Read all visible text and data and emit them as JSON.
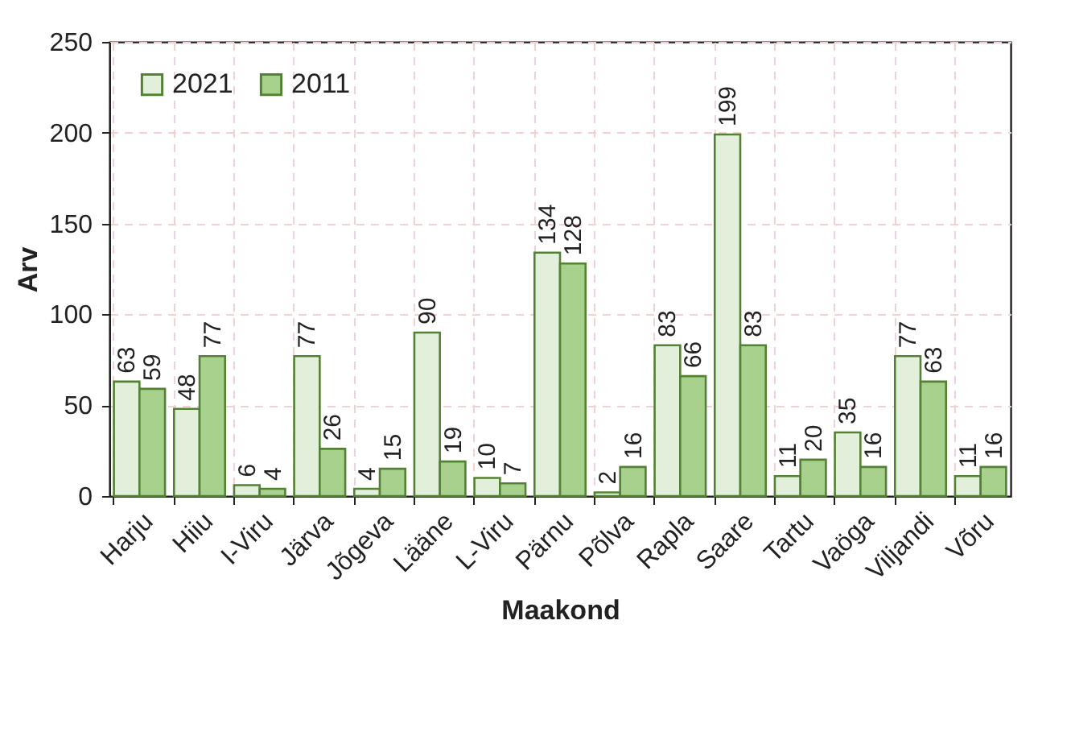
{
  "chart_data": {
    "type": "bar",
    "xlabel": "Maakond",
    "ylabel": "Arv",
    "categories": [
      "Harju",
      "Hiiu",
      "I-Viru",
      "Järva",
      "Jõgeva",
      "Lääne",
      "L-Viru",
      "Pärnu",
      "Põlva",
      "Rapla",
      "Saare",
      "Tartu",
      "Vaöga",
      "Viljandi",
      "Võru"
    ],
    "series": [
      {
        "name": "2021",
        "color": "#e2efda",
        "values": [
          63,
          48,
          6,
          77,
          4,
          90,
          10,
          134,
          2,
          83,
          199,
          11,
          35,
          77,
          11
        ]
      },
      {
        "name": "2011",
        "color": "#a9d18e",
        "values": [
          59,
          77,
          4,
          26,
          15,
          19,
          7,
          128,
          16,
          66,
          83,
          20,
          16,
          63,
          16
        ]
      }
    ],
    "ylim": [
      0,
      250
    ],
    "yticks": [
      0,
      50,
      100,
      150,
      200,
      250
    ],
    "grid": true,
    "legend": "top left",
    "data_labels": true
  }
}
